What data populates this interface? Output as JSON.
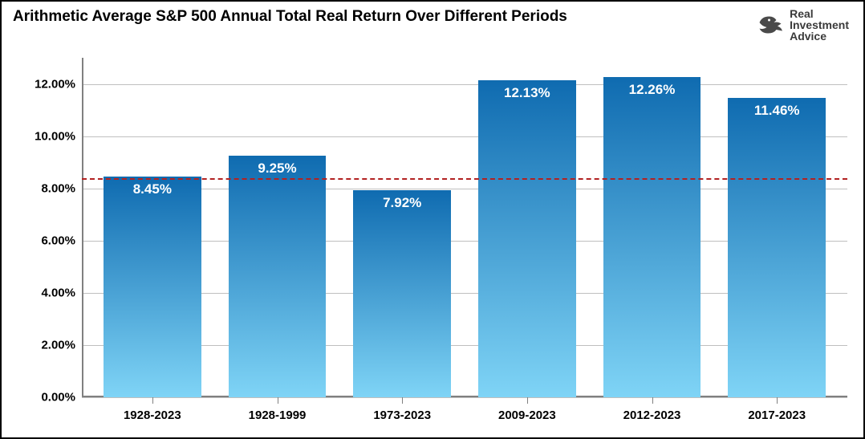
{
  "title": "Arithmetic Average S&P 500 Annual Total Real Return Over Different Periods",
  "title_fontsize": 19,
  "logo": {
    "line1": "Real",
    "line2": "Investment",
    "line3": "Advice",
    "fontsize": 14,
    "color": "#3a3a3a"
  },
  "chart": {
    "type": "bar",
    "categories": [
      "1928-2023",
      "1928-1999",
      "1973-2023",
      "2009-2023",
      "2012-2023",
      "2017-2023"
    ],
    "values": [
      8.45,
      9.25,
      7.92,
      12.13,
      12.26,
      11.46
    ],
    "value_labels": [
      "8.45%",
      "9.25%",
      "7.92%",
      "12.13%",
      "12.26%",
      "11.46%"
    ],
    "bar_gradient_top": "#0f6bb0",
    "bar_gradient_bottom": "#7fd4f6",
    "bar_width_ratio": 0.78,
    "data_label_color": "#ffffff",
    "data_label_fontsize": 17,
    "data_label_weight": "bold",
    "y_axis": {
      "min": 0.0,
      "max": 13.0,
      "tick_step": 2.0,
      "tick_labels": [
        "0.00%",
        "2.00%",
        "4.00%",
        "6.00%",
        "8.00%",
        "10.00%",
        "12.00%"
      ],
      "label_fontsize": 15,
      "label_color": "#000000"
    },
    "x_axis": {
      "label_fontsize": 15,
      "label_color": "#000000"
    },
    "gridline_color": "#bfbfbf",
    "axis_line_color": "#808080",
    "reference_line": {
      "value": 8.4,
      "color": "#b22222",
      "style": "dashed",
      "width": 2
    },
    "background_color": "#ffffff",
    "border_color": "#000000"
  }
}
